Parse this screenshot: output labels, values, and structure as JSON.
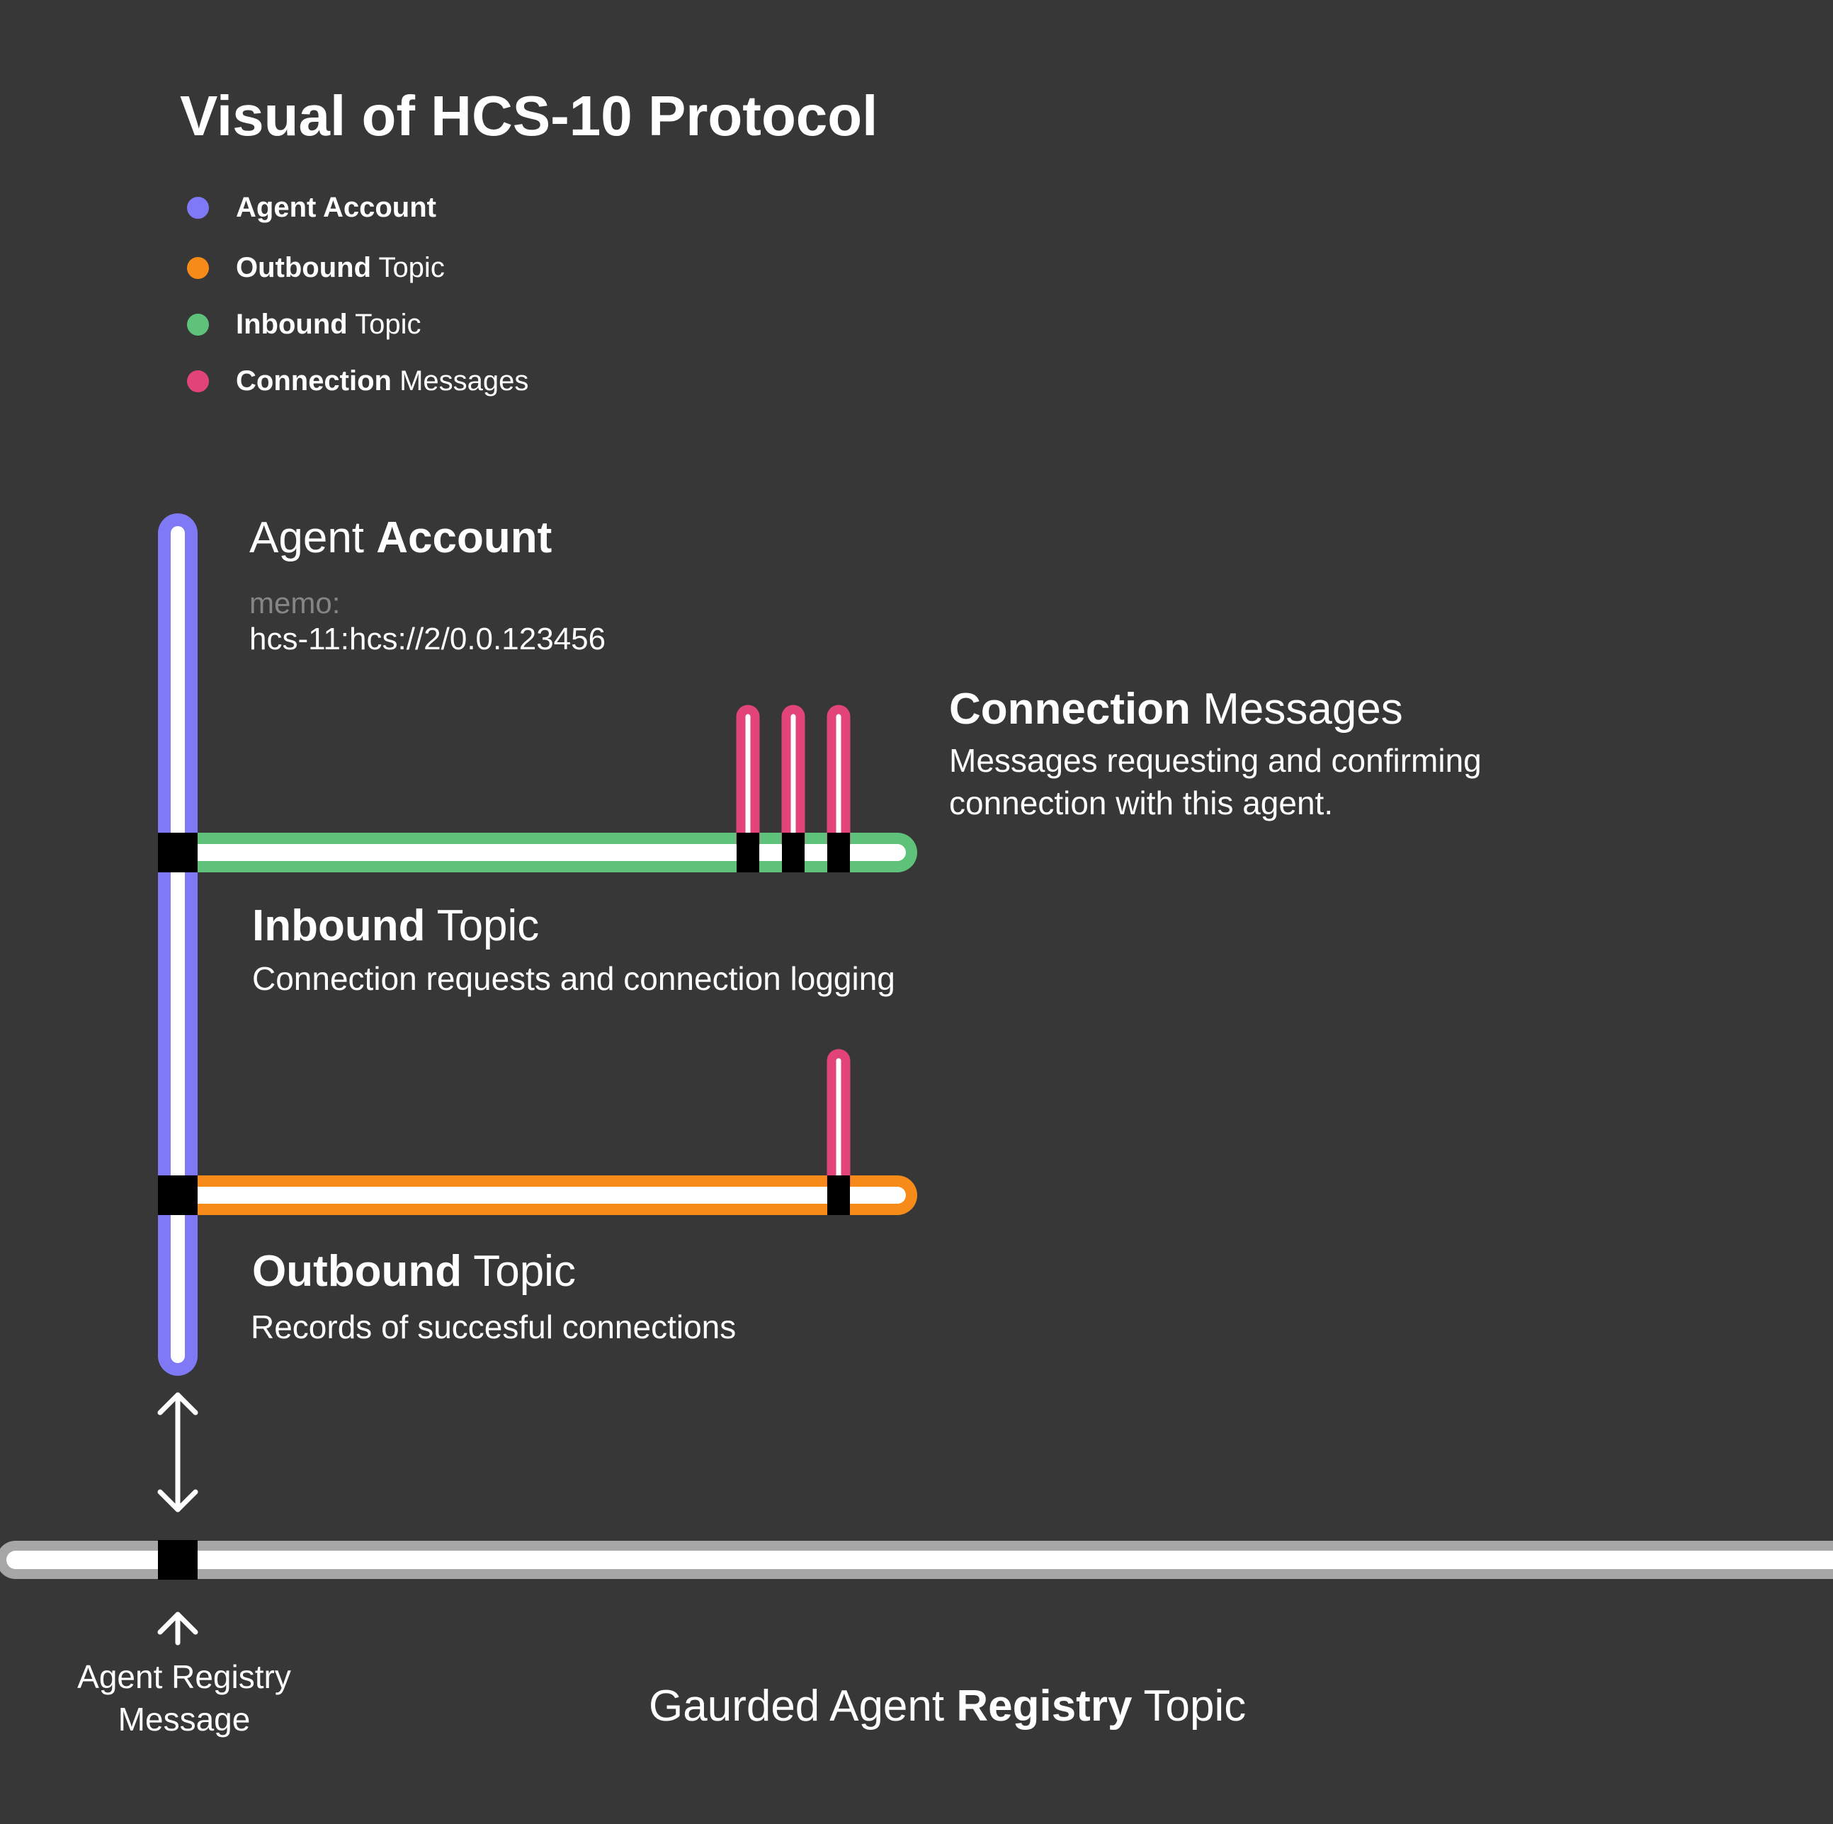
{
  "title": "Visual of HCS-10 Protocol",
  "colors": {
    "background": "#373737",
    "agent_account": "#8079F5",
    "outbound_topic": "#F68B1A",
    "inbound_topic": "#5EC27A",
    "connection_messages": "#E2447A",
    "registry_topic": "#A6A6A6",
    "marker": "#000000",
    "text": "#FFFFFF",
    "muted_text": "#858585"
  },
  "legend": [
    {
      "bold": "Agent Account",
      "regular": "",
      "color": "#8079F5"
    },
    {
      "bold": "Outbound",
      "regular": " Topic",
      "color": "#F68B1A"
    },
    {
      "bold": "Inbound",
      "regular": " Topic",
      "color": "#5EC27A"
    },
    {
      "bold": "Connection",
      "regular": " Messages",
      "color": "#E2447A"
    }
  ],
  "agent_account": {
    "heading_regular": "Agent ",
    "heading_bold": "Account",
    "memo_label": "memo:",
    "memo_value": "hcs-11:hcs://2/0.0.123456"
  },
  "connection_messages": {
    "heading_bold": "Connection",
    "heading_regular": " Messages",
    "description_line1": "Messages requesting and confirming",
    "description_line2": "connection with this agent."
  },
  "inbound_topic": {
    "heading_bold": "Inbound",
    "heading_regular": " Topic",
    "description": "Connection requests and connection logging",
    "message_count": 3
  },
  "outbound_topic": {
    "heading_bold": "Outbound",
    "heading_regular": " Topic",
    "description": "Records of succesful connections",
    "message_count": 1
  },
  "registry": {
    "message_label_line1": "Agent Registry",
    "message_label_line2": "Message",
    "topic_prefix": "Gaurded Agent ",
    "topic_bold": "Registry",
    "topic_suffix": " Topic"
  }
}
